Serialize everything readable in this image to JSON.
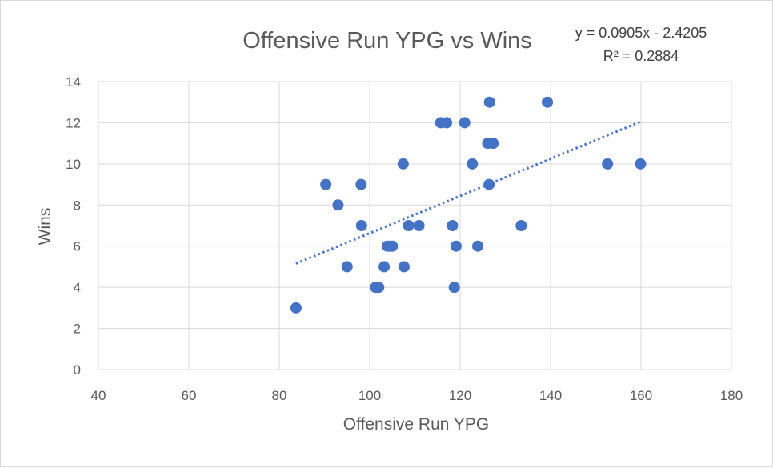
{
  "chart_data": {
    "type": "scatter",
    "title": "Offensive Run YPG vs Wins",
    "xlabel": "Offensive Run YPG",
    "ylabel": "Wins",
    "xlim": [
      40,
      180
    ],
    "ylim": [
      0,
      14
    ],
    "x_ticks": [
      "40",
      "60",
      "80",
      "100",
      "120",
      "140",
      "160",
      "180"
    ],
    "y_ticks": [
      "0",
      "2",
      "4",
      "6",
      "8",
      "10",
      "12",
      "14"
    ],
    "grid": true,
    "marker_color": "#4472C4",
    "trendline": {
      "type": "linear",
      "slope": 0.0905,
      "intercept": -2.4205,
      "x_range": [
        83.7,
        159.9
      ],
      "equation": "y = 0.0905x - 2.4205",
      "r_squared": "R² = 0.2884",
      "style": "dotted",
      "color": "#4472C4"
    },
    "points": [
      {
        "x": 83.7,
        "y": 3
      },
      {
        "x": 90.3,
        "y": 9
      },
      {
        "x": 93.0,
        "y": 8
      },
      {
        "x": 95.0,
        "y": 5
      },
      {
        "x": 98.1,
        "y": 9
      },
      {
        "x": 98.2,
        "y": 7
      },
      {
        "x": 101.3,
        "y": 4
      },
      {
        "x": 102.0,
        "y": 4
      },
      {
        "x": 103.2,
        "y": 5
      },
      {
        "x": 103.9,
        "y": 6
      },
      {
        "x": 104.5,
        "y": 6
      },
      {
        "x": 105.0,
        "y": 6
      },
      {
        "x": 107.4,
        "y": 10
      },
      {
        "x": 107.6,
        "y": 5
      },
      {
        "x": 108.6,
        "y": 7
      },
      {
        "x": 110.9,
        "y": 7
      },
      {
        "x": 115.7,
        "y": 12
      },
      {
        "x": 117.0,
        "y": 12
      },
      {
        "x": 118.3,
        "y": 7
      },
      {
        "x": 118.7,
        "y": 4
      },
      {
        "x": 119.1,
        "y": 6
      },
      {
        "x": 121.0,
        "y": 12
      },
      {
        "x": 122.7,
        "y": 10
      },
      {
        "x": 123.9,
        "y": 6
      },
      {
        "x": 126.1,
        "y": 11
      },
      {
        "x": 126.4,
        "y": 9
      },
      {
        "x": 126.5,
        "y": 13
      },
      {
        "x": 127.3,
        "y": 11
      },
      {
        "x": 133.5,
        "y": 7
      },
      {
        "x": 139.3,
        "y": 13
      },
      {
        "x": 152.6,
        "y": 10
      },
      {
        "x": 159.9,
        "y": 10
      }
    ]
  }
}
